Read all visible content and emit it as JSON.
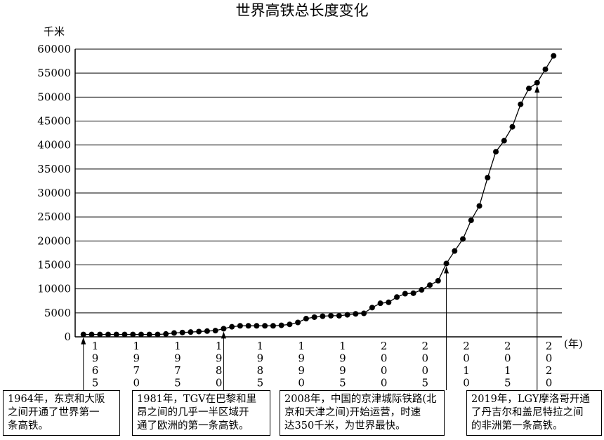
{
  "chart_data": {
    "type": "line",
    "title": "世界高铁总长度变化",
    "ylabel": "千米",
    "xlabel": "(年)",
    "ylim": [
      0,
      60000
    ],
    "xlim": [
      1963,
      2022
    ],
    "grid": "horizontal",
    "yticks": [
      0,
      5000,
      10000,
      15000,
      20000,
      25000,
      30000,
      35000,
      40000,
      45000,
      50000,
      55000,
      60000
    ],
    "xtick_labels": [
      "1965",
      "1970",
      "1975",
      "1980",
      "1985",
      "1990",
      "1995",
      "2000",
      "2005",
      "2010",
      "2015",
      "2020"
    ],
    "series": [
      {
        "x": [
          1964,
          1965,
          1966,
          1967,
          1968,
          1969,
          1970,
          1971,
          1972,
          1973,
          1974,
          1975,
          1976,
          1977,
          1978,
          1979,
          1980,
          1981,
          1982,
          1983,
          1984,
          1985,
          1986,
          1987,
          1988,
          1989,
          1990,
          1991,
          1992,
          1993,
          1994,
          1995,
          1996,
          1997,
          1998,
          1999,
          2000,
          2001,
          2002,
          2003,
          2004,
          2005,
          2006,
          2007,
          2008,
          2009,
          2010,
          2011,
          2012,
          2013,
          2014,
          2015,
          2016,
          2017,
          2018,
          2019,
          2020,
          2021
        ],
        "y": [
          500,
          500,
          500,
          500,
          500,
          500,
          500,
          500,
          500,
          500,
          600,
          800,
          900,
          1000,
          1100,
          1200,
          1300,
          1700,
          2100,
          2300,
          2300,
          2300,
          2300,
          2300,
          2400,
          2600,
          3000,
          3800,
          4100,
          4300,
          4400,
          4400,
          4600,
          4800,
          4900,
          6100,
          7000,
          7200,
          8300,
          9000,
          9100,
          9800,
          10800,
          11700,
          15300,
          17900,
          20400,
          24300,
          27300,
          33200,
          38600,
          40900,
          43800,
          48500,
          51800,
          53000,
          55800,
          58600
        ]
      }
    ],
    "annotations": [
      {
        "year": 1964,
        "lines": [
          "1964年，东京和大阪",
          "之间开通了世界第一",
          "条高铁。"
        ]
      },
      {
        "year": 1981,
        "lines": [
          "1981年，TGV在巴黎和里",
          "昂之间的几乎一半区域开",
          "通了欧洲的第一条高铁。"
        ]
      },
      {
        "year": 2008,
        "lines": [
          "2008年，中国的京津城际铁路(北",
          "京和天津之间)开始运营，时速",
          "达350千米，为世界最快。"
        ]
      },
      {
        "year": 2019,
        "lines": [
          "2019年，LGY摩洛哥开通",
          "了丹吉尔和盖尼特拉之间",
          "的非洲第一条高铁。"
        ]
      }
    ]
  }
}
